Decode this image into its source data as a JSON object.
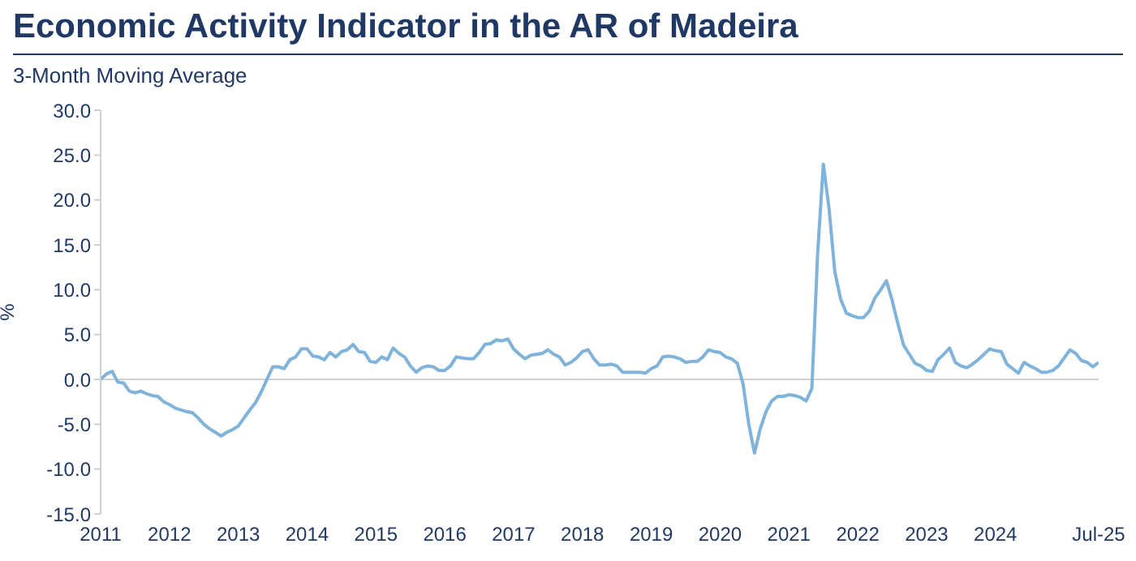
{
  "chart_data": {
    "type": "line",
    "title": "Economic Activity Indicator in the AR of Madeira",
    "subtitle": "3-Month Moving Average",
    "ylabel": "%",
    "x": [
      "2011-01",
      "2011-02",
      "2011-03",
      "2011-04",
      "2011-05",
      "2011-06",
      "2011-07",
      "2011-08",
      "2011-09",
      "2011-10",
      "2011-11",
      "2011-12",
      "2012-01",
      "2012-02",
      "2012-03",
      "2012-04",
      "2012-05",
      "2012-06",
      "2012-07",
      "2012-08",
      "2012-09",
      "2012-10",
      "2012-11",
      "2012-12",
      "2013-01",
      "2013-02",
      "2013-03",
      "2013-04",
      "2013-05",
      "2013-06",
      "2013-07",
      "2013-08",
      "2013-09",
      "2013-10",
      "2013-11",
      "2013-12",
      "2014-01",
      "2014-02",
      "2014-03",
      "2014-04",
      "2014-05",
      "2014-06",
      "2014-07",
      "2014-08",
      "2014-09",
      "2014-10",
      "2014-11",
      "2014-12",
      "2015-01",
      "2015-02",
      "2015-03",
      "2015-04",
      "2015-05",
      "2015-06",
      "2015-07",
      "2015-08",
      "2015-09",
      "2015-10",
      "2015-11",
      "2015-12",
      "2016-01",
      "2016-02",
      "2016-03",
      "2016-04",
      "2016-05",
      "2016-06",
      "2016-07",
      "2016-08",
      "2016-09",
      "2016-10",
      "2016-11",
      "2016-12",
      "2017-01",
      "2017-02",
      "2017-03",
      "2017-04",
      "2017-05",
      "2017-06",
      "2017-07",
      "2017-08",
      "2017-09",
      "2017-10",
      "2017-11",
      "2017-12",
      "2018-01",
      "2018-02",
      "2018-03",
      "2018-04",
      "2018-05",
      "2018-06",
      "2018-07",
      "2018-08",
      "2018-09",
      "2018-10",
      "2018-11",
      "2018-12",
      "2019-01",
      "2019-02",
      "2019-03",
      "2019-04",
      "2019-05",
      "2019-06",
      "2019-07",
      "2019-08",
      "2019-09",
      "2019-10",
      "2019-11",
      "2019-12",
      "2020-01",
      "2020-02",
      "2020-03",
      "2020-04",
      "2020-05",
      "2020-06",
      "2020-07",
      "2020-08",
      "2020-09",
      "2020-10",
      "2020-11",
      "2020-12",
      "2021-01",
      "2021-02",
      "2021-03",
      "2021-04",
      "2021-05",
      "2021-06",
      "2021-07",
      "2021-08",
      "2021-09",
      "2021-10",
      "2021-11",
      "2021-12",
      "2022-01",
      "2022-02",
      "2022-03",
      "2022-04",
      "2022-05",
      "2022-06",
      "2022-07",
      "2022-08",
      "2022-09",
      "2022-10",
      "2022-11",
      "2022-12",
      "2023-01",
      "2023-02",
      "2023-03",
      "2023-04",
      "2023-05",
      "2023-06",
      "2023-07",
      "2023-08",
      "2023-09",
      "2023-10",
      "2023-11",
      "2023-12",
      "2024-01",
      "2024-02",
      "2024-03",
      "2024-04",
      "2024-05",
      "2024-06",
      "2024-07",
      "2024-08",
      "2024-09",
      "2024-10",
      "2024-11",
      "2024-12",
      "2025-01",
      "2025-02",
      "2025-03",
      "2025-04",
      "2025-05",
      "2025-06",
      "2025-07"
    ],
    "series": [
      {
        "color": "#7fb3da",
        "values": [
          0.0,
          0.6,
          0.9,
          -0.3,
          -0.4,
          -1.3,
          -1.5,
          -1.3,
          -1.6,
          -1.8,
          -1.9,
          -2.5,
          -2.8,
          -3.2,
          -3.4,
          -3.6,
          -3.7,
          -4.3,
          -5.0,
          -5.5,
          -5.9,
          -6.3,
          -5.9,
          -5.6,
          -5.2,
          -4.3,
          -3.4,
          -2.6,
          -1.4,
          0.0,
          1.4,
          1.4,
          1.2,
          2.2,
          2.5,
          3.4,
          3.4,
          2.6,
          2.5,
          2.2,
          3.0,
          2.5,
          3.1,
          3.3,
          3.9,
          3.1,
          3.0,
          2.0,
          1.9,
          2.5,
          2.2,
          3.5,
          2.9,
          2.5,
          1.5,
          0.8,
          1.3,
          1.5,
          1.4,
          1.0,
          1.0,
          1.5,
          2.5,
          2.4,
          2.3,
          2.3,
          3.0,
          3.9,
          4.0,
          4.4,
          4.3,
          4.5,
          3.4,
          2.8,
          2.3,
          2.7,
          2.8,
          2.9,
          3.3,
          2.8,
          2.5,
          1.6,
          1.9,
          2.4,
          3.1,
          3.3,
          2.3,
          1.6,
          1.6,
          1.7,
          1.5,
          0.8,
          0.8,
          0.8,
          0.8,
          0.7,
          1.2,
          1.5,
          2.5,
          2.6,
          2.5,
          2.3,
          1.9,
          2.0,
          2.0,
          2.5,
          3.3,
          3.1,
          3.0,
          2.5,
          2.3,
          1.8,
          -0.5,
          -5.0,
          -8.2,
          -5.5,
          -3.6,
          -2.4,
          -1.9,
          -1.9,
          -1.7,
          -1.8,
          -2.0,
          -2.4,
          -1.0,
          14.0,
          24.0,
          19.0,
          12.0,
          9.0,
          7.4,
          7.1,
          6.9,
          6.9,
          7.6,
          9.1,
          10.0,
          11.0,
          8.8,
          6.2,
          3.8,
          2.8,
          1.8,
          1.5,
          1.0,
          0.9,
          2.2,
          2.8,
          3.5,
          1.9,
          1.5,
          1.3,
          1.7,
          2.2,
          2.8,
          3.4,
          3.2,
          3.1,
          1.7,
          1.2,
          0.7,
          1.9,
          1.5,
          1.2,
          0.8,
          0.8,
          1.0,
          1.5,
          2.4,
          3.3,
          2.9,
          2.1,
          1.9,
          1.4,
          1.9
        ]
      }
    ],
    "xlim": [
      "2011-01",
      "2025-07"
    ],
    "xticks": [
      {
        "value": "2011-01",
        "label": "2011"
      },
      {
        "value": "2012-01",
        "label": "2012"
      },
      {
        "value": "2013-01",
        "label": "2013"
      },
      {
        "value": "2014-01",
        "label": "2014"
      },
      {
        "value": "2015-01",
        "label": "2015"
      },
      {
        "value": "2016-01",
        "label": "2016"
      },
      {
        "value": "2017-01",
        "label": "2017"
      },
      {
        "value": "2018-01",
        "label": "2018"
      },
      {
        "value": "2019-01",
        "label": "2019"
      },
      {
        "value": "2020-01",
        "label": "2020"
      },
      {
        "value": "2021-01",
        "label": "2021"
      },
      {
        "value": "2022-01",
        "label": "2022"
      },
      {
        "value": "2023-01",
        "label": "2023"
      },
      {
        "value": "2024-01",
        "label": "2024"
      },
      {
        "value": "2025-07",
        "label": "Jul-25"
      }
    ],
    "ylim": [
      -15,
      30
    ],
    "yticks": [
      {
        "value": -15,
        "label": "-15.0"
      },
      {
        "value": -10,
        "label": "-10.0"
      },
      {
        "value": -5,
        "label": "-5.0"
      },
      {
        "value": 0,
        "label": "0.0"
      },
      {
        "value": 5,
        "label": "5.0"
      },
      {
        "value": 10,
        "label": "10.0"
      },
      {
        "value": 15,
        "label": "15.0"
      },
      {
        "value": 20,
        "label": "20.0"
      },
      {
        "value": 25,
        "label": "25.0"
      },
      {
        "value": 30,
        "label": "30.0"
      }
    ],
    "ref_lines": [
      {
        "axis": "y",
        "value": 0,
        "color": "#d0d0d0"
      }
    ],
    "grid": false,
    "legend": false,
    "marker": "none",
    "line_style": "solid"
  }
}
